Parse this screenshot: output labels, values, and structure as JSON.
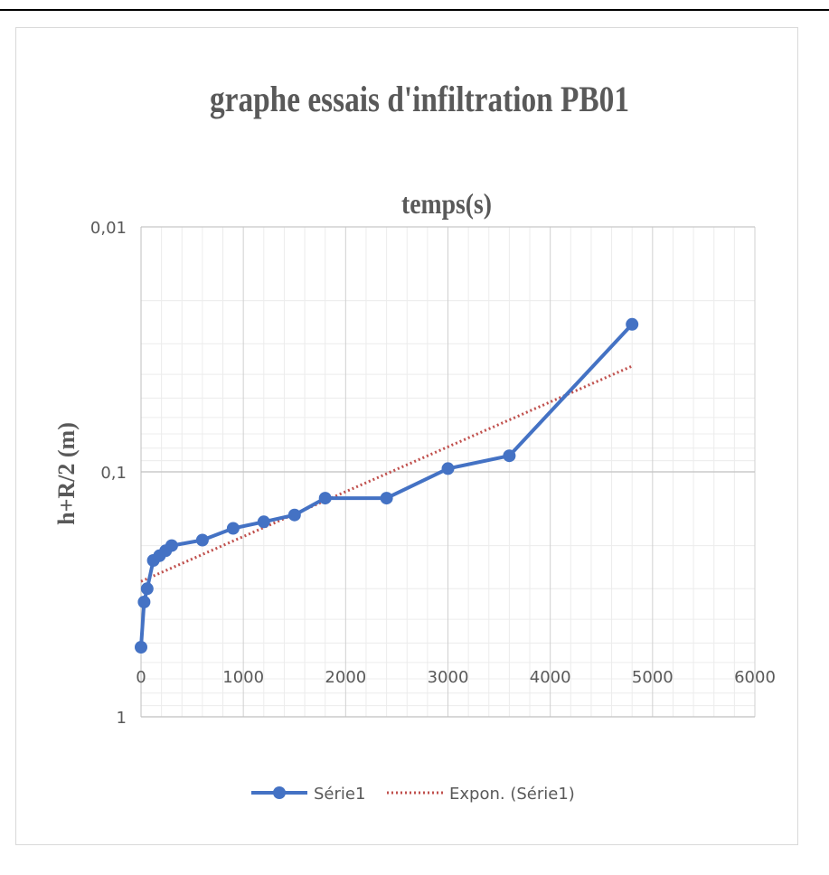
{
  "chart_data": {
    "type": "line",
    "title": "graphe essais d'infiltration PB01",
    "xlabel": "temps(s)",
    "ylabel": "h+R/2 (m)",
    "xlim": [
      0,
      6000
    ],
    "xticks": [
      0,
      1000,
      2000,
      3000,
      4000,
      5000,
      6000
    ],
    "xtick_labels": [
      "0",
      "1000",
      "2000",
      "3000",
      "4000",
      "5000",
      "6000"
    ],
    "ylim": [
      1,
      0.01
    ],
    "yscale": "log",
    "yaxis_reversed": true,
    "yticks": [
      0.01,
      0.1,
      1
    ],
    "ytick_labels": [
      "0,01",
      "0,1",
      "1"
    ],
    "grid": true,
    "legend_position": "bottom",
    "series": [
      {
        "name": "Série1",
        "color": "#4472c4",
        "marker": "circle",
        "x": [
          0,
          30,
          60,
          120,
          180,
          240,
          300,
          600,
          900,
          1200,
          1500,
          1800,
          2400,
          3000,
          3600,
          4800
        ],
        "y": [
          0.52,
          0.34,
          0.3,
          0.23,
          0.22,
          0.21,
          0.2,
          0.19,
          0.17,
          0.16,
          0.15,
          0.128,
          0.128,
          0.097,
          0.086,
          0.025
        ]
      }
    ],
    "trendline": {
      "name": "Expon. (Série1)",
      "type": "exponential",
      "color": "#c0504d",
      "style": "dotted",
      "x": [
        0,
        4800
      ],
      "y": [
        0.28,
        0.037
      ]
    }
  }
}
